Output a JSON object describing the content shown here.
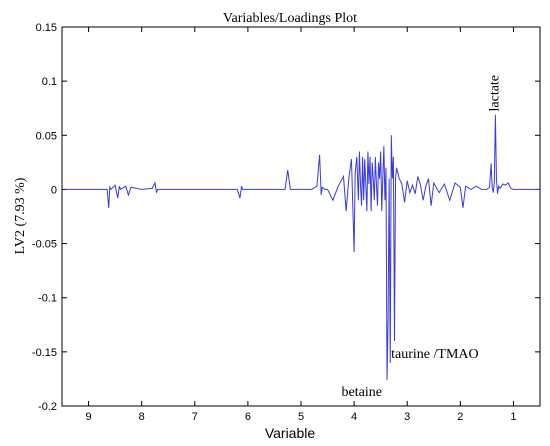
{
  "chart_data": {
    "type": "line",
    "title": "Variables/Loadings Plot",
    "xlabel": "Variable",
    "ylabel": "LV2 (7.93 %)",
    "xlim": [
      9.5,
      0.5
    ],
    "x_reversed": true,
    "ylim": [
      -0.2,
      0.15
    ],
    "xticks": [
      9,
      8,
      7,
      6,
      5,
      4,
      3,
      2,
      1
    ],
    "yticks": [
      0.15,
      0.1,
      0.05,
      0,
      -0.05,
      -0.1,
      -0.15,
      -0.2
    ],
    "ytick_labels": [
      "0.15",
      "0.1",
      "0.05",
      "0",
      "-0.05",
      "-0.1",
      "-0.15",
      "-0.2"
    ],
    "grid": false,
    "line_color": "#3a3adf",
    "series": [
      {
        "x": [
          9.45,
          9.2,
          9.0,
          8.8,
          8.65,
          8.62,
          8.6,
          8.58,
          8.5,
          8.45,
          8.42,
          8.4,
          8.3,
          8.25,
          8.2,
          8.0,
          7.8,
          7.75,
          7.72,
          7.7,
          7.5,
          7.2,
          7.0,
          6.8,
          6.5,
          6.2,
          6.15,
          6.12,
          6.1,
          6.0,
          5.8,
          5.5,
          5.3,
          5.25,
          5.2,
          5.0,
          4.8,
          4.7,
          4.65,
          4.62,
          4.6,
          4.55,
          4.5,
          4.4,
          4.3,
          4.2,
          4.15,
          4.1,
          4.05,
          4.0,
          3.98,
          3.95,
          3.92,
          3.9,
          3.88,
          3.86,
          3.84,
          3.82,
          3.8,
          3.78,
          3.76,
          3.74,
          3.72,
          3.7,
          3.68,
          3.66,
          3.64,
          3.62,
          3.6,
          3.58,
          3.56,
          3.54,
          3.52,
          3.5,
          3.48,
          3.46,
          3.44,
          3.42,
          3.4,
          3.38,
          3.36,
          3.34,
          3.32,
          3.3,
          3.28,
          3.26,
          3.24,
          3.22,
          3.2,
          3.15,
          3.1,
          3.05,
          3.0,
          2.95,
          2.9,
          2.85,
          2.8,
          2.75,
          2.7,
          2.65,
          2.6,
          2.55,
          2.5,
          2.4,
          2.3,
          2.2,
          2.1,
          2.0,
          1.95,
          1.9,
          1.8,
          1.7,
          1.6,
          1.5,
          1.45,
          1.42,
          1.4,
          1.38,
          1.36,
          1.34,
          1.32,
          1.3,
          1.28,
          1.25,
          1.2,
          1.15,
          1.1,
          1.05,
          1.0,
          0.9,
          0.8,
          0.7,
          0.6,
          0.5
        ],
        "y": [
          0,
          0,
          0,
          0,
          0,
          -0.017,
          0.002,
          0,
          0.004,
          -0.008,
          0.003,
          0,
          0.003,
          -0.005,
          0.002,
          0,
          0.001,
          0.006,
          -0.003,
          0,
          0,
          0,
          0,
          0,
          0,
          0,
          -0.008,
          0.003,
          0,
          0,
          0,
          0,
          0,
          0.018,
          0,
          0,
          0,
          0.003,
          0.032,
          -0.005,
          0.002,
          0,
          0,
          -0.01,
          0.003,
          0.012,
          -0.02,
          0.01,
          0.028,
          -0.058,
          0.015,
          0.03,
          -0.01,
          0.035,
          0.005,
          -0.015,
          0.03,
          -0.01,
          0.028,
          0.005,
          -0.02,
          0.035,
          0.005,
          0.03,
          -0.02,
          0.025,
          0.01,
          -0.01,
          0.03,
          0.005,
          -0.015,
          0.025,
          0.01,
          0.035,
          -0.02,
          0.01,
          0.04,
          -0.01,
          0.02,
          -0.176,
          -0.12,
          0.01,
          -0.16,
          0.05,
          0.01,
          0.03,
          -0.14,
          0.01,
          0.02,
          0.01,
          0.005,
          -0.012,
          0.008,
          -0.003,
          0.004,
          -0.004,
          0.012,
          0.004,
          -0.01,
          0.003,
          0.01,
          -0.015,
          0.006,
          -0.003,
          0.005,
          -0.01,
          0.006,
          0.002,
          -0.017,
          0.003,
          0,
          0.003,
          0,
          0,
          0.002,
          0.024,
          0.002,
          -0.003,
          0.007,
          0.069,
          0.01,
          -0.004,
          0.003,
          0.001,
          0.005,
          0.004,
          0.006,
          0.001,
          0,
          0,
          0,
          0,
          0,
          0
        ]
      }
    ],
    "annotations": [
      {
        "text": "lactate",
        "x": 1.36,
        "y": 0.072,
        "rotation": -90
      },
      {
        "text": "taurine /TMAO",
        "x": 3.34,
        "y": -0.152
      },
      {
        "text": "betaine",
        "x": 3.4,
        "y": -0.178
      }
    ]
  }
}
